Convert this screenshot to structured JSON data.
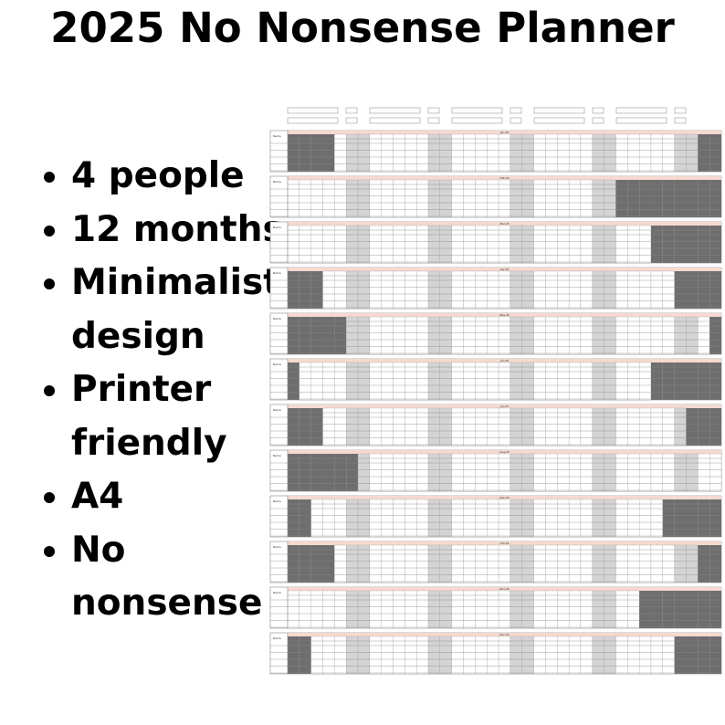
{
  "header": {
    "title": "2025 No Nonsense Planner"
  },
  "features": [
    "4 people",
    "12 months",
    "Minimalist design",
    "Printer friendly",
    "A4",
    "No nonsense"
  ],
  "planner": {
    "name_label": "Name",
    "months": [
      "Jan-25",
      "Feb-25",
      "Mar-25",
      "Apr-25",
      "May-25",
      "Jun-25",
      "Jul-25",
      "Aug-25",
      "Sep-25",
      "Oct-25",
      "Nov-25",
      "Dec-25"
    ]
  }
}
